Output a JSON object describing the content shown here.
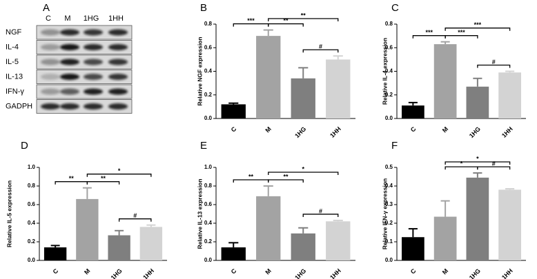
{
  "blot": {
    "panel": "A",
    "lanes": [
      "C",
      "M",
      "1HG",
      "1HH"
    ],
    "proteins": [
      "NGF",
      "IL-4",
      "IL-5",
      "IL-13",
      "IFN-γ",
      "GADPH"
    ]
  },
  "chart_data": [
    {
      "type": "bar",
      "panel": "B",
      "ylabel": "Relative NGF expression",
      "categories": [
        "C",
        "M",
        "1HG",
        "1HH"
      ],
      "values": [
        0.12,
        0.7,
        0.34,
        0.5
      ],
      "errors": [
        0.01,
        0.05,
        0.09,
        0.03
      ],
      "colors": [
        "#000000",
        "#a3a3a3",
        "#7f7f7f",
        "#d3d3d3"
      ],
      "ylim": [
        0,
        0.8
      ],
      "yticks": [
        {
          "value": 0,
          "label": "0.0"
        },
        0.2,
        0.4,
        0.6,
        0.8
      ],
      "significance": [
        {
          "from": "C",
          "to": "M",
          "label": "***"
        },
        {
          "from": "M",
          "to": "1HG",
          "label": "**"
        },
        {
          "from": "M",
          "to": "1HH",
          "label": "**"
        },
        {
          "from": "1HG",
          "to": "1HH",
          "label": "#"
        }
      ]
    },
    {
      "type": "bar",
      "panel": "C",
      "ylabel": "Relative IL-4 expression",
      "categories": [
        "C",
        "M",
        "1HG",
        "1HH"
      ],
      "values": [
        0.11,
        0.63,
        0.27,
        0.39
      ],
      "errors": [
        0.025,
        0.02,
        0.07,
        0.01
      ],
      "colors": [
        "#000000",
        "#a3a3a3",
        "#7f7f7f",
        "#d3d3d3"
      ],
      "ylim": [
        0,
        0.8
      ],
      "yticks": [
        {
          "value": 0,
          "label": "0.0"
        },
        0.2,
        0.4,
        0.6,
        0.8
      ],
      "significance": [
        {
          "from": "C",
          "to": "M",
          "label": "***"
        },
        {
          "from": "M",
          "to": "1HG",
          "label": "***"
        },
        {
          "from": "M",
          "to": "1HH",
          "label": "***"
        },
        {
          "from": "1HG",
          "to": "1HH",
          "label": "#"
        }
      ]
    },
    {
      "type": "bar",
      "panel": "D",
      "ylabel": "Relative IL-5 expression",
      "categories": [
        "C",
        "M",
        "1HG",
        "1HH"
      ],
      "values": [
        0.14,
        0.66,
        0.27,
        0.36
      ],
      "errors": [
        0.02,
        0.12,
        0.05,
        0.02
      ],
      "colors": [
        "#000000",
        "#a3a3a3",
        "#7f7f7f",
        "#d3d3d3"
      ],
      "ylim": [
        0,
        1.0
      ],
      "yticks": [
        {
          "value": 0,
          "label": "0.0"
        },
        0.2,
        0.4,
        0.6,
        0.8,
        {
          "value": 1.0,
          "label": "1.0"
        }
      ],
      "significance": [
        {
          "from": "C",
          "to": "M",
          "label": "**"
        },
        {
          "from": "M",
          "to": "1HG",
          "label": "**"
        },
        {
          "from": "M",
          "to": "1HH",
          "label": "*"
        },
        {
          "from": "1HG",
          "to": "1HH",
          "label": "#"
        }
      ]
    },
    {
      "type": "bar",
      "panel": "E",
      "ylabel": "Relative IL-13 expression",
      "categories": [
        "C",
        "M",
        "1HG",
        "1HH"
      ],
      "values": [
        0.14,
        0.69,
        0.29,
        0.42
      ],
      "errors": [
        0.05,
        0.11,
        0.06,
        0.01
      ],
      "colors": [
        "#000000",
        "#a3a3a3",
        "#7f7f7f",
        "#d3d3d3"
      ],
      "ylim": [
        0,
        1.0
      ],
      "yticks": [
        {
          "value": 0,
          "label": "0.0"
        },
        0.2,
        0.4,
        0.6,
        0.8,
        {
          "value": 1.0,
          "label": "1.0"
        }
      ],
      "significance": [
        {
          "from": "C",
          "to": "M",
          "label": "**"
        },
        {
          "from": "M",
          "to": "1HG",
          "label": "**"
        },
        {
          "from": "M",
          "to": "1HH",
          "label": "*"
        },
        {
          "from": "1HG",
          "to": "1HH",
          "label": "#"
        }
      ]
    },
    {
      "type": "bar",
      "panel": "F",
      "ylabel": "Relative IFN-γ expression",
      "categories": [
        "C",
        "M",
        "1HG",
        "1HH"
      ],
      "values": [
        0.125,
        0.235,
        0.445,
        0.38
      ],
      "errors": [
        0.045,
        0.085,
        0.025,
        0.005
      ],
      "colors": [
        "#000000",
        "#a3a3a3",
        "#7f7f7f",
        "#d3d3d3"
      ],
      "ylim": [
        0,
        0.5
      ],
      "yticks": [
        {
          "value": 0,
          "label": "0.0"
        },
        0.1,
        0.2,
        0.3,
        0.4,
        0.5
      ],
      "significance": [
        {
          "from": "M",
          "to": "1HG",
          "label": "*"
        },
        {
          "from": "M",
          "to": "1HH",
          "label": "*"
        },
        {
          "from": "1HG",
          "to": "1HH",
          "label": "#"
        }
      ]
    }
  ]
}
